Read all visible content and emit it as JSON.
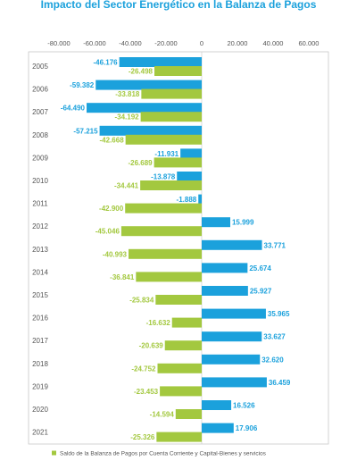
{
  "chart_data": {
    "type": "bar",
    "orientation": "horizontal",
    "title": "Impacto del Sector Energético en la Balanza de Pagos",
    "categories": [
      "2005",
      "2006",
      "2007",
      "2008",
      "2009",
      "2010",
      "2011",
      "2012",
      "2013",
      "2014",
      "2015",
      "2016",
      "2017",
      "2018",
      "2019",
      "2020",
      "2021"
    ],
    "series": [
      {
        "values": [
          -46176,
          -59382,
          -64490,
          -57215,
          -11931,
          -13878,
          -1888,
          15999,
          33771,
          25674,
          25927,
          35965,
          33627,
          32620,
          36459,
          16526,
          17906
        ],
        "labels": [
          "-46.176",
          "-59.382",
          "-64.490",
          "-57.215",
          "-11.931",
          "-13.878",
          "-1.888",
          "15.999",
          "33.771",
          "25.674",
          "25.927",
          "35.965",
          "33.627",
          "32.620",
          "36.459",
          "16.526",
          "17.906"
        ],
        "color": "#1ba1dc"
      },
      {
        "name": "Saldo de la Balanza de Pagos por Cuenta Corriente y Capital-Bienes y servicios",
        "values": [
          -26498,
          -33818,
          -34192,
          -42668,
          -26689,
          -34441,
          -42900,
          -45046,
          -40993,
          -36841,
          -25834,
          -16632,
          -20639,
          -24752,
          -23453,
          -14594,
          -25326
        ],
        "labels": [
          "-26.498",
          "-33.818",
          "-34.192",
          "-42.668",
          "-26.689",
          "-34.441",
          "-42.900",
          "-45.046",
          "-40.993",
          "-36.841",
          "-25.834",
          "-16.632",
          "-20.639",
          "-24.752",
          "-23.453",
          "-14.594",
          "-25.326"
        ],
        "color": "#a3c83f"
      }
    ],
    "xlim": [
      -80000,
      60000
    ],
    "x_ticks": [
      -80000,
      -60000,
      -40000,
      -20000,
      0,
      20000,
      40000,
      60000
    ],
    "x_tick_labels": [
      "-80.000",
      "-60.000",
      "-40.000",
      "-20.000",
      "0",
      "20.000",
      "40.000",
      "60.000"
    ],
    "xlabel": "",
    "ylabel": "",
    "grid": false,
    "legend_position": "bottom",
    "colors": {
      "title": "#1ba1dc",
      "blue": "#1ba1dc",
      "green": "#a3c83f",
      "text": "#555555",
      "frame": "#c8c8c8"
    }
  }
}
